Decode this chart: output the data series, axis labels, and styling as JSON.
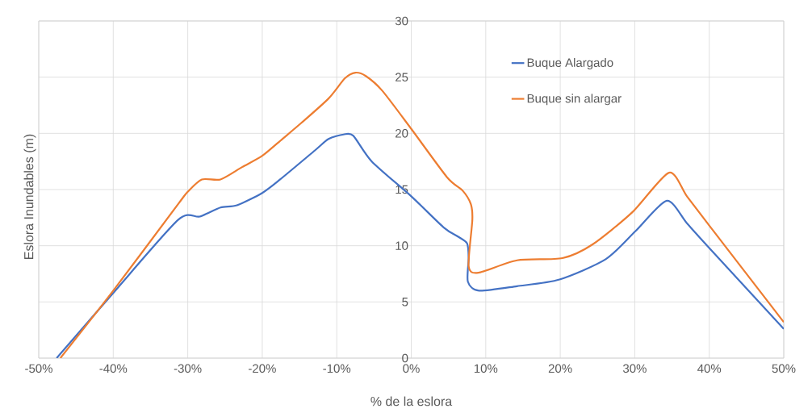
{
  "chart_data": {
    "type": "line",
    "xlabel": "% de la eslora",
    "ylabel": "Eslora Inundables (m)",
    "xlim": [
      -50,
      50
    ],
    "ylim": [
      0,
      30
    ],
    "xticks": [
      {
        "value": -50,
        "label": "-50%"
      },
      {
        "value": -40,
        "label": "-40%"
      },
      {
        "value": -30,
        "label": "-30%"
      },
      {
        "value": -20,
        "label": "-20%"
      },
      {
        "value": -10,
        "label": "-10%"
      },
      {
        "value": 0,
        "label": "0%"
      },
      {
        "value": 10,
        "label": "10%"
      },
      {
        "value": 20,
        "label": "20%"
      },
      {
        "value": 30,
        "label": "30%"
      },
      {
        "value": 40,
        "label": "40%"
      },
      {
        "value": 50,
        "label": "50%"
      }
    ],
    "yticks": [
      0,
      5,
      10,
      15,
      20,
      25,
      30
    ],
    "grid": true,
    "legend": "top right",
    "series": [
      {
        "name": "Buque Alargado",
        "color": "#4472c4",
        "x": [
          -47.6,
          -40,
          -31.3,
          -28.4,
          -25.6,
          -23.4,
          -20,
          -17.6,
          -12.9,
          -11.1,
          -9.1,
          -7.8,
          -5.3,
          0,
          4.4,
          6.3,
          7.5,
          7.7,
          7.6,
          9.1,
          14.2,
          19.9,
          26.1,
          30.1,
          34.3,
          37.0,
          40.0,
          50
        ],
        "values": [
          0,
          5.8,
          12.3,
          12.6,
          13.4,
          13.6,
          14.7,
          15.9,
          18.5,
          19.5,
          19.9,
          19.8,
          17.5,
          14.4,
          11.6,
          10.8,
          10.2,
          8.9,
          6.8,
          6.0,
          6.4,
          7.0,
          8.8,
          11.3,
          14.0,
          12.0,
          9.8,
          2.6
        ]
      },
      {
        "name": "Buque sin alargar",
        "color": "#ed7d31",
        "x": [
          -47.1,
          -40,
          -31.3,
          -30,
          -28.1,
          -25.6,
          -22.7,
          -20,
          -17.3,
          -14.8,
          -11.1,
          -8.9,
          -7.5,
          -6.1,
          -3.9,
          0,
          4.8,
          6.9,
          8.0,
          8.2,
          7.7,
          9.0,
          14.2,
          20.3,
          24.3,
          29.7,
          34.6,
          37.0,
          40.0,
          50
        ],
        "values": [
          0,
          6.0,
          13.7,
          14.8,
          15.9,
          15.9,
          17.0,
          18.0,
          19.5,
          20.9,
          23.1,
          24.9,
          25.4,
          25.1,
          23.8,
          20.4,
          16.1,
          14.9,
          13.7,
          12.3,
          8.2,
          7.6,
          8.7,
          8.9,
          10.1,
          13.0,
          16.5,
          14.4,
          11.8,
          3.2
        ]
      }
    ]
  }
}
